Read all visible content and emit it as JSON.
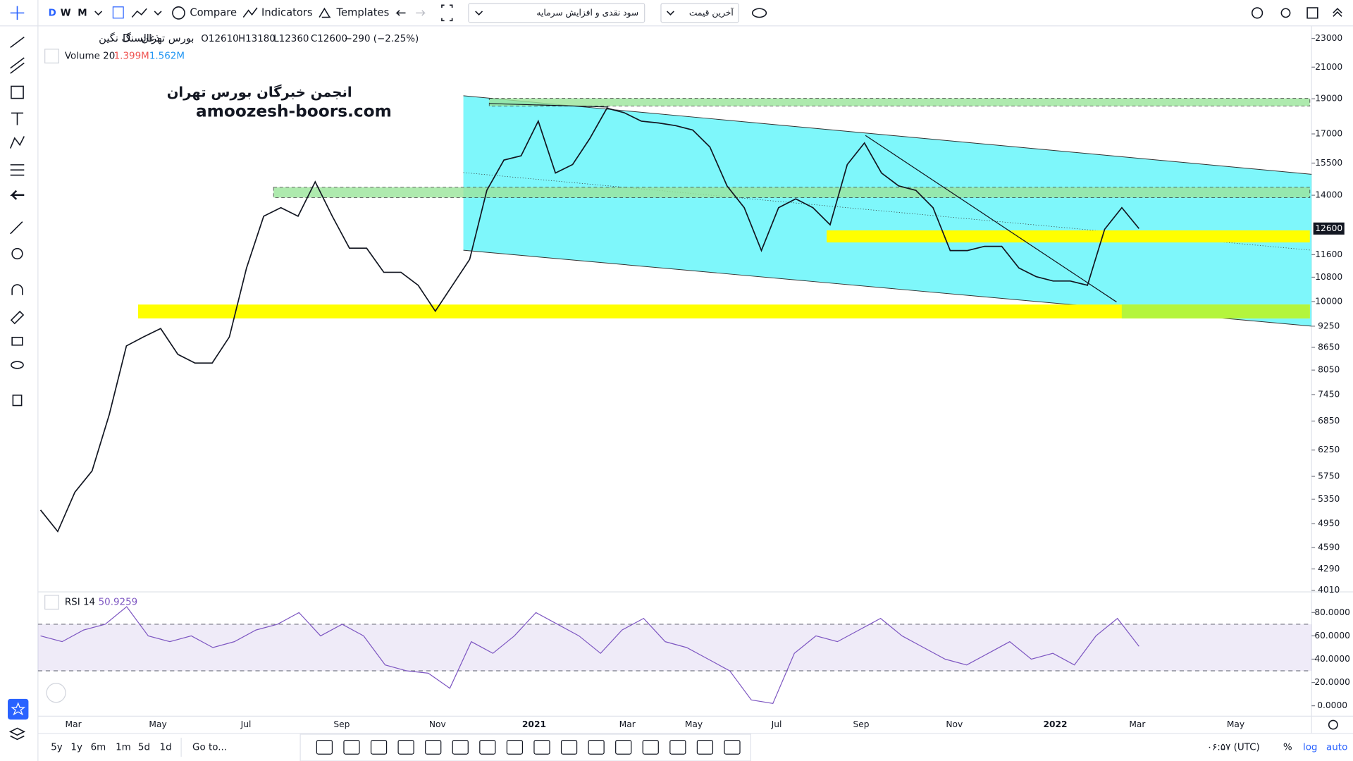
{
  "top_toolbar": {
    "intervals": [
      "D",
      "W",
      "M"
    ],
    "buttons": [
      "Compare",
      "Indicators",
      "Templates"
    ],
    "dropdowns": [
      "سود نقدی و افزایش سرمایه",
      "آخرین قیمت"
    ]
  },
  "legend": {
    "symbol": "ذغالسنگ نگین",
    "interval": "D",
    "exchange": "بورس تهران",
    "ohlc": [
      "O12610",
      "H13180",
      "L12360",
      "C12600",
      "−290 (−2.25%)"
    ],
    "volume_label": "Volume 20",
    "volume_values": [
      "1.399M",
      "1.562M"
    ],
    "rsi_label": "RSI 14",
    "rsi_value": "50.9259"
  },
  "watermark": [
    "انجمن خبرگان بورس تهران",
    "amoozesh-boors.com"
  ],
  "chart_data": [
    {
      "type": "line",
      "color": "#131722",
      "log": true,
      "ylim": [
        4000,
        23800
      ],
      "yticks": [
        23000,
        21000,
        19000,
        17000,
        15500,
        14000,
        11600,
        10800,
        10000,
        9250,
        8650,
        8050,
        7450,
        6850,
        6250,
        5750,
        5350,
        4950,
        4590,
        4290,
        4010
      ],
      "last_price": 12600,
      "values": [
        5170,
        4830,
        5470,
        5850,
        6990,
        8690,
        8940,
        9180,
        8460,
        8230,
        8230,
        8940,
        11120,
        13100,
        13460,
        13100,
        14610,
        13100,
        11840,
        11840,
        10970,
        10970,
        10530,
        9700,
        10530,
        11430,
        14220,
        15650,
        15860,
        17700,
        15020,
        15430,
        16750,
        18440,
        18180,
        17700,
        17600,
        17450,
        17210,
        16310,
        14420,
        13460,
        11750,
        13460,
        13840,
        13460,
        12750,
        15430,
        16520,
        15020,
        14420,
        14220,
        13460,
        11750,
        11750,
        11910,
        11910,
        11120,
        10820,
        10670,
        10670,
        10530,
        12570,
        13460,
        12600
      ],
      "x_labels": [
        "Mar",
        "May",
        "Jul",
        "Sep",
        "Nov",
        "2021",
        "Mar",
        "May",
        "Jul",
        "Sep",
        "Nov",
        "2022",
        "Mar",
        "May"
      ]
    },
    {
      "type": "line",
      "color": "#7e57c2",
      "ylim": [
        -8.9,
        97
      ],
      "yticks": [
        {
          "value": 80,
          "label": "80.0000"
        },
        {
          "value": 60,
          "label": "60.0000"
        },
        {
          "value": 40,
          "label": "40.0000"
        },
        {
          "value": 20,
          "label": "20.0000"
        },
        {
          "value": 0,
          "label": "0.0000"
        }
      ],
      "upper_band": 70,
      "lower_band": 30,
      "values": [
        60,
        55,
        65,
        70,
        85,
        60,
        55,
        60,
        50,
        55,
        65,
        70,
        80,
        60,
        70,
        60,
        35,
        30,
        28,
        15,
        55,
        45,
        60,
        80,
        70,
        60,
        45,
        65,
        75,
        55,
        50,
        40,
        30,
        5,
        2,
        45,
        60,
        55,
        65,
        75,
        60,
        50,
        40,
        35,
        45,
        55,
        40,
        45,
        35,
        60,
        75,
        51
      ]
    }
  ],
  "bottom_toolbar": {
    "ranges": [
      "5y",
      "1y",
      "6m",
      "1m",
      "5d",
      "1d"
    ],
    "goto": "Go to...",
    "clock": "۰۶:۵۷ (UTC)",
    "options": [
      "%",
      "log",
      "auto"
    ]
  }
}
